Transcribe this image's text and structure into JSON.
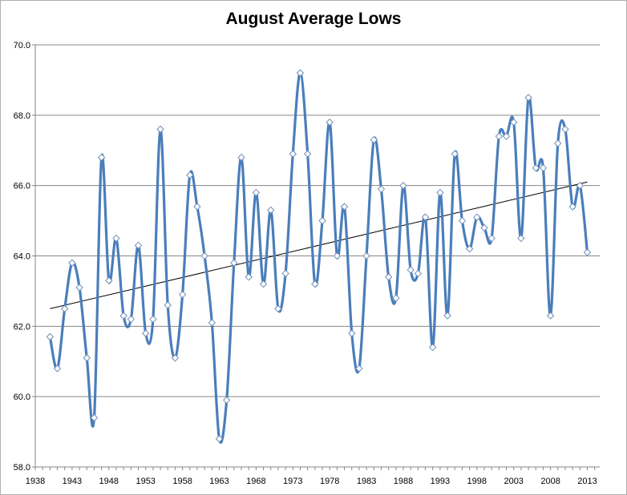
{
  "chart_data": {
    "type": "line",
    "title": "August Average Lows",
    "xlabel": "",
    "ylabel": "",
    "xlim": [
      1938,
      2013
    ],
    "ylim": [
      58.0,
      70.0
    ],
    "y_ticks": [
      "58.0",
      "60.0",
      "62.0",
      "64.0",
      "66.0",
      "68.0",
      "70.0"
    ],
    "x_ticks": [
      "1938",
      "1943",
      "1948",
      "1953",
      "1958",
      "1963",
      "1968",
      "1973",
      "1978",
      "1983",
      "1988",
      "1993",
      "1998",
      "2003",
      "2008",
      "2013"
    ],
    "grid": "horizontal",
    "legend": "none",
    "colors": {
      "series": "#4a7ebb",
      "trend": "#000000",
      "grid": "#868686",
      "axis": "#868686"
    },
    "series": [
      {
        "x": [
          1940,
          1941,
          1942,
          1943,
          1944,
          1945,
          1946,
          1947,
          1948,
          1949,
          1950,
          1951,
          1952,
          1953,
          1954,
          1955,
          1956,
          1957,
          1958,
          1959,
          1960,
          1961,
          1962,
          1963,
          1964,
          1965,
          1966,
          1967,
          1968,
          1969,
          1970,
          1971,
          1972,
          1973,
          1974,
          1975,
          1976,
          1977,
          1978,
          1979,
          1980,
          1981,
          1982,
          1983,
          1984,
          1985,
          1986,
          1987,
          1988,
          1989,
          1990,
          1991,
          1992,
          1993,
          1994,
          1995,
          1996,
          1997,
          1998,
          1999,
          2000,
          2001,
          2002,
          2003,
          2004,
          2005,
          2006,
          2007,
          2008,
          2009,
          2010,
          2011,
          2012,
          2013
        ],
        "values": [
          61.7,
          60.8,
          62.5,
          63.8,
          63.1,
          61.1,
          59.4,
          66.8,
          63.3,
          64.5,
          62.3,
          62.2,
          64.3,
          61.8,
          62.2,
          67.6,
          62.6,
          61.1,
          62.9,
          66.3,
          65.4,
          64.0,
          62.1,
          58.8,
          59.9,
          63.8,
          66.8,
          63.4,
          65.8,
          63.2,
          65.3,
          62.5,
          63.5,
          66.9,
          69.2,
          66.9,
          63.2,
          65.0,
          67.8,
          64.0,
          65.4,
          61.8,
          60.8,
          64.0,
          67.3,
          65.9,
          63.4,
          62.8,
          66.0,
          63.6,
          63.5,
          65.1,
          61.4,
          65.8,
          62.3,
          66.9,
          65.0,
          64.2,
          65.1,
          64.8,
          64.5,
          67.4,
          67.4,
          67.8,
          64.5,
          68.5,
          66.5,
          66.5,
          62.3,
          67.2,
          67.6,
          65.4,
          66.0,
          64.1
        ]
      }
    ],
    "trendline": {
      "type": "linear",
      "from": [
        1940,
        62.5
      ],
      "to": [
        2013,
        66.1
      ]
    }
  }
}
